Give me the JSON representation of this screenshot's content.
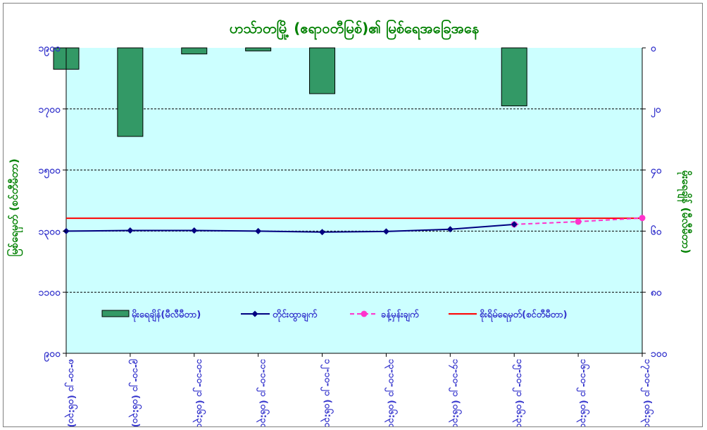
{
  "chart_data": {
    "type": "bar+line",
    "title": "ဟသ်ာတမြို့ (ဧရာဝတီမြစ်)၏ မြစ်ရေအခြေအနေ",
    "ylabel_left": "မြစ်ရေမှတ် (စင်တီမီတာ)",
    "ylabel_right": "မိုးရေချိန် (မီလီမီတာ)",
    "y_left_ticks": [
      "၁၉၀၀",
      "၁၇၀၀",
      "၁၅၀၀",
      "၁၃၀၀",
      "၁၁၀၀",
      "၉၀၀"
    ],
    "y_left_range": [
      900,
      1900
    ],
    "y_right_ticks": [
      "၀",
      "၂၀",
      "၄၀",
      "၆၀",
      "၈၀",
      "၁၀၀"
    ],
    "y_right_range": [
      0,
      100
    ],
    "y_right_inverted": true,
    "categories": [
      "၈-၁၀-၂၁ (၀၆:၃၀)",
      "၉-၁၀-၂၁ (၀၆:၃၀)",
      "၁၀-၁၀-၂၁ (၀၆:၃၀)",
      "၁၁-၁၀-၂၁ (၀၆:၃၀)",
      "၁၂-၁၀-၂၁ (၀၆:၃၀)",
      "၁၃-၁၀-၂၁ (၀၆:၃၀)",
      "၁၄-၁၀-၂၁ (၀၆:၃၀)",
      "၁၅-၁၀-၂၁ (၀၆:၃၀)",
      "၁၆-၁၀-၂၁ (၀၆:၃၀)",
      "၁၇-၁၀-၂၁ (၀၆:၃၀)"
    ],
    "series": [
      {
        "name": "မိုးရေချိန်(မီလီမီတာ)",
        "type": "bar",
        "axis": "right",
        "color": "#339966",
        "values": [
          7,
          29,
          2,
          1,
          15,
          0,
          0,
          19,
          0,
          0
        ]
      },
      {
        "name": "တိုင်းထွာချက်",
        "type": "line",
        "axis": "left",
        "color": "#000080",
        "values": [
          1300,
          1302,
          1302,
          1300,
          1297,
          1299,
          1306,
          1322,
          null,
          null
        ]
      },
      {
        "name": "ခန့်မှန်းချက်",
        "type": "line-dashed",
        "axis": "left",
        "color": "#ff33cc",
        "values": [
          null,
          null,
          null,
          null,
          null,
          null,
          null,
          1322,
          1331,
          1343
        ]
      },
      {
        "name": "စိုးရိမ်ရေမှတ်(စင်တီမီတာ)",
        "type": "hline",
        "axis": "left",
        "color": "#ff0000",
        "value": 1342
      }
    ],
    "grid": true,
    "legend": "bottom-center"
  }
}
